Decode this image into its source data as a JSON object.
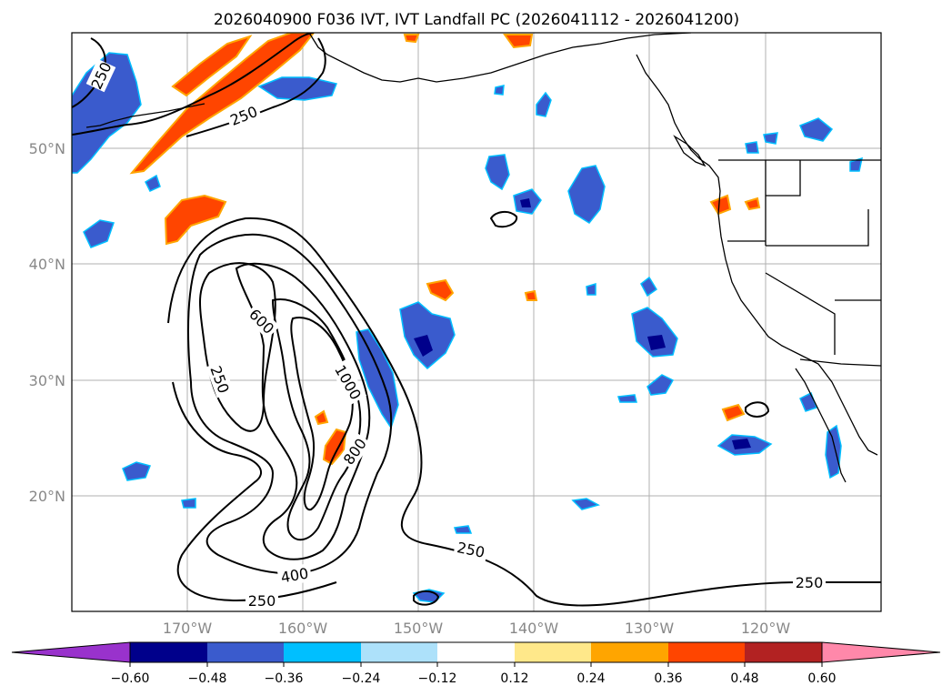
{
  "title": "2026040900 F036 IVT, IVT Landfall PC (2026041112 - 2026041200)",
  "map": {
    "lat_range": [
      10,
      60
    ],
    "lon_range": [
      -180,
      -110
    ],
    "lat_ticks": [
      {
        "value": 50,
        "label": "50°N"
      },
      {
        "value": 40,
        "label": "40°N"
      },
      {
        "value": 30,
        "label": "30°N"
      },
      {
        "value": 20,
        "label": "20°N"
      }
    ],
    "lon_ticks": [
      {
        "value": -170,
        "label": "170°W"
      },
      {
        "value": -160,
        "label": "160°W"
      },
      {
        "value": -150,
        "label": "150°W"
      },
      {
        "value": -140,
        "label": "140°W"
      },
      {
        "value": -130,
        "label": "130°W"
      },
      {
        "value": -120,
        "label": "120°W"
      }
    ],
    "grid": true,
    "contour_labels": [
      "250",
      "250",
      "600",
      "250",
      "1000",
      "800",
      "400",
      "250",
      "250",
      "250"
    ]
  },
  "colorbar": {
    "orientation": "horizontal",
    "extend": "both",
    "bins": [
      {
        "from": null,
        "to": -0.6,
        "color": "#9932CC"
      },
      {
        "from": -0.6,
        "to": -0.48,
        "color": "#00008B"
      },
      {
        "from": -0.48,
        "to": -0.36,
        "color": "#3A5BCD"
      },
      {
        "from": -0.36,
        "to": -0.24,
        "color": "#00BFFF"
      },
      {
        "from": -0.24,
        "to": -0.12,
        "color": "#ADE1FA"
      },
      {
        "from": -0.12,
        "to": 0.12,
        "color": "#FFFFFF"
      },
      {
        "from": 0.12,
        "to": 0.24,
        "color": "#FFE88A"
      },
      {
        "from": 0.24,
        "to": 0.36,
        "color": "#FFA500"
      },
      {
        "from": 0.36,
        "to": 0.48,
        "color": "#FF4500"
      },
      {
        "from": 0.48,
        "to": 0.6,
        "color": "#B22222"
      },
      {
        "from": 0.6,
        "to": null,
        "color": "#FF88AA"
      }
    ],
    "tick_labels": [
      "−0.60",
      "−0.48",
      "−0.36",
      "−0.24",
      "−0.12",
      "0.12",
      "0.24",
      "0.36",
      "0.48",
      "0.60"
    ]
  }
}
